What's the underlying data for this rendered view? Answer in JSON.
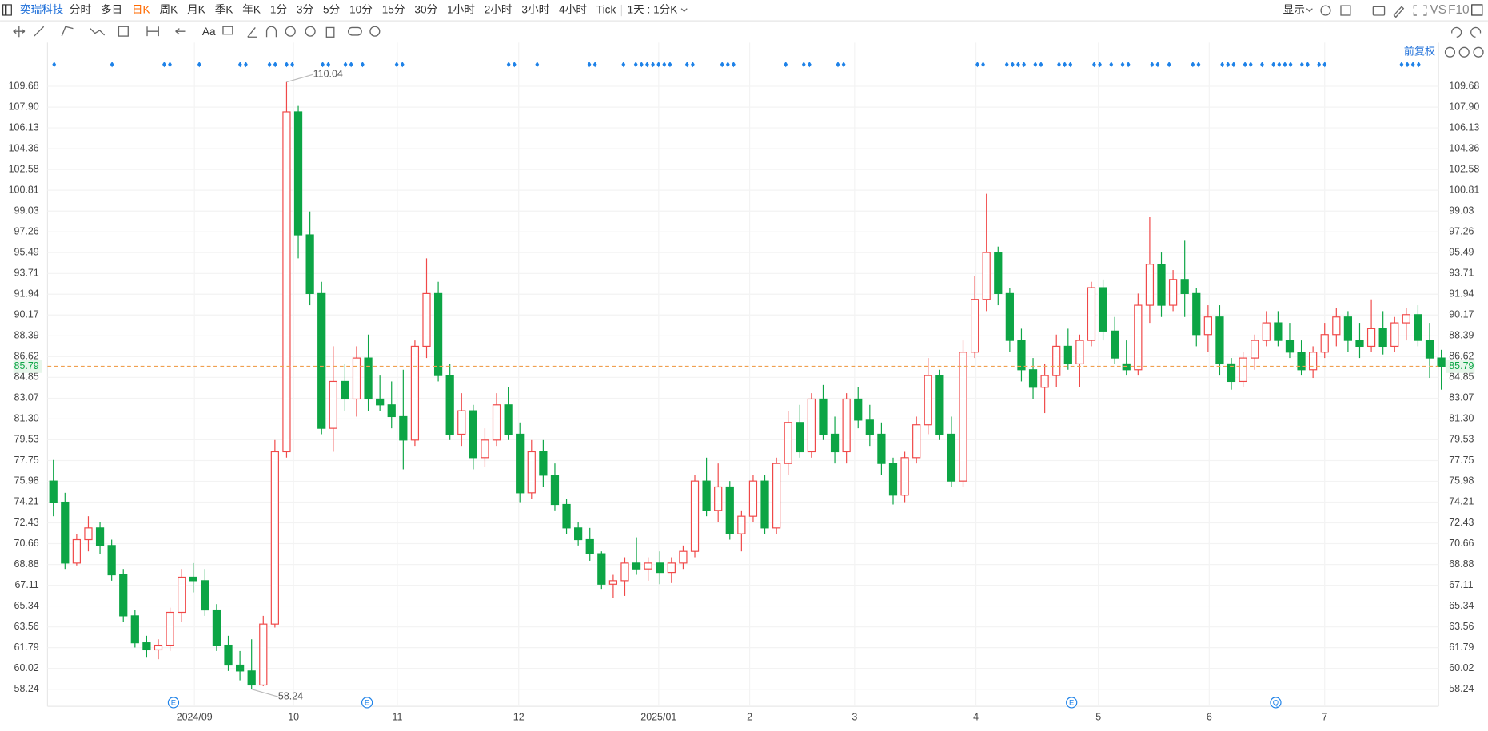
{
  "toolbar": {
    "stock": "奕瑞科技",
    "periods": [
      "分时",
      "多日",
      "日K",
      "周K",
      "月K",
      "季K",
      "年K",
      "1分",
      "3分",
      "5分",
      "10分",
      "15分",
      "30分",
      "1小时",
      "2小时",
      "3小时",
      "4小时",
      "Tick"
    ],
    "active_period": 2,
    "interval": "1天 : 1分K",
    "display": "显示",
    "vs": "VS",
    "f10": "F10",
    "adjust": "前复权"
  },
  "chart_data": {
    "type": "candlestick",
    "up_color": "#f04848",
    "down_color": "#0ca545",
    "last_color": "#f0a050",
    "xlim": [
      -0.5,
      119.5
    ],
    "xticks": [
      {
        "value": 12.1,
        "label": "2024/09"
      },
      {
        "value": 20.6,
        "label": "10"
      },
      {
        "value": 29.5,
        "label": "11"
      },
      {
        "value": 39.9,
        "label": "12"
      },
      {
        "value": 51.9,
        "label": "2025/01"
      },
      {
        "value": 59.7,
        "label": "2"
      },
      {
        "value": 68.7,
        "label": "3"
      },
      {
        "value": 79.1,
        "label": "4"
      },
      {
        "value": 89.6,
        "label": "5"
      },
      {
        "value": 99.1,
        "label": "6"
      },
      {
        "value": 109.0,
        "label": "7"
      }
    ],
    "ylim": [
      57.59,
      113.4
    ],
    "yticks": [
      58.24,
      60.02,
      61.79,
      63.56,
      65.34,
      67.11,
      68.88,
      70.66,
      72.43,
      74.21,
      75.98,
      77.75,
      79.53,
      {
        "value": 81.3,
        "label": "81.30"
      },
      83.07,
      84.85,
      86.62,
      88.39,
      90.17,
      91.94,
      93.71,
      95.49,
      97.26,
      99.03,
      100.81,
      102.58,
      104.36,
      106.13,
      {
        "value": 107.9,
        "label": "107.90"
      },
      109.68
    ],
    "grid": true,
    "last_price": 85.79,
    "annotations": [
      {
        "value": 110.04,
        "at": 20
      },
      {
        "value": 58.24,
        "at": 17
      }
    ],
    "event_markers": [
      {
        "label": "E",
        "at": 10.3
      },
      {
        "label": "E",
        "at": 26.9
      },
      {
        "label": "E",
        "at": 87.3
      },
      {
        "label": "Q",
        "at": 104.8
      }
    ],
    "ohlc": [
      [
        76,
        77.8,
        73,
        74.2
      ],
      [
        74.2,
        75,
        68.5,
        69
      ],
      [
        69,
        71.5,
        68.8,
        71
      ],
      [
        71,
        73,
        70,
        72
      ],
      [
        72,
        72.5,
        69.8,
        70.5
      ],
      [
        70.5,
        71,
        67.5,
        68
      ],
      [
        68,
        68.5,
        64,
        64.5
      ],
      [
        64.5,
        65,
        61.8,
        62.2
      ],
      [
        62.2,
        62.8,
        61,
        61.6
      ],
      [
        61.6,
        62.5,
        60.8,
        62
      ],
      [
        62,
        65.2,
        61.5,
        64.8
      ],
      [
        64.8,
        68.5,
        64,
        67.8
      ],
      [
        67.8,
        69,
        66.5,
        67.5
      ],
      [
        67.5,
        68.5,
        64.5,
        65
      ],
      [
        65,
        65.5,
        61.5,
        62
      ],
      [
        62,
        62.8,
        59.8,
        60.3
      ],
      [
        60.3,
        61.5,
        59,
        59.8
      ],
      [
        59.8,
        62.5,
        58.24,
        58.6
      ],
      [
        58.6,
        64.5,
        58.5,
        63.8
      ],
      [
        63.8,
        79.5,
        63.5,
        78.5
      ],
      [
        78.5,
        110.04,
        78,
        107.5
      ],
      [
        107.5,
        108,
        95,
        97
      ],
      [
        97,
        99,
        91,
        92
      ],
      [
        92,
        93,
        80,
        80.5
      ],
      [
        80.5,
        87.5,
        78.5,
        84.5
      ],
      [
        84.5,
        86,
        82,
        83
      ],
      [
        83,
        87.5,
        81.5,
        86.5
      ],
      [
        86.5,
        88.5,
        82,
        83
      ],
      [
        83,
        85,
        82,
        82.5
      ],
      [
        82.5,
        84.5,
        80.5,
        81.5
      ],
      [
        81.5,
        85.5,
        77,
        79.5
      ],
      [
        79.5,
        88,
        79,
        87.5
      ],
      [
        87.5,
        95,
        86.5,
        92
      ],
      [
        92,
        93,
        84.5,
        85
      ],
      [
        85,
        86,
        79.5,
        80
      ],
      [
        80,
        83.5,
        79,
        82
      ],
      [
        82,
        82.5,
        77,
        78
      ],
      [
        78,
        80.5,
        77.2,
        79.5
      ],
      [
        79.5,
        83.5,
        79,
        82.5
      ],
      [
        82.5,
        84,
        79.5,
        80
      ],
      [
        80,
        81,
        74.2,
        75
      ],
      [
        75,
        79.5,
        74.5,
        78.5
      ],
      [
        78.5,
        79.5,
        75.5,
        76.5
      ],
      [
        76.5,
        77.5,
        73.5,
        74
      ],
      [
        74,
        74.5,
        71.5,
        72
      ],
      [
        72,
        72.5,
        70.5,
        71
      ],
      [
        71,
        72,
        69.2,
        69.8
      ],
      [
        69.8,
        70,
        66.8,
        67.2
      ],
      [
        67.2,
        68,
        66,
        67.5
      ],
      [
        67.5,
        69.5,
        66.2,
        69
      ],
      [
        69,
        71.2,
        68,
        68.5
      ],
      [
        68.5,
        69.5,
        67.5,
        69
      ],
      [
        69,
        70,
        67.2,
        68.2
      ],
      [
        68.2,
        69.5,
        67.3,
        69
      ],
      [
        69,
        70.5,
        68.5,
        70
      ],
      [
        70,
        76.5,
        69.5,
        76
      ],
      [
        76,
        78,
        73,
        73.5
      ],
      [
        73.5,
        77.5,
        72.5,
        75.5
      ],
      [
        75.5,
        76,
        71,
        71.5
      ],
      [
        71.5,
        73.5,
        70,
        73
      ],
      [
        73,
        76.5,
        72.5,
        76
      ],
      [
        76,
        76.5,
        71.5,
        72
      ],
      [
        72,
        78,
        71.5,
        77.5
      ],
      [
        77.5,
        82,
        76.5,
        81
      ],
      [
        81,
        82.5,
        78,
        78.5
      ],
      [
        78.5,
        83.5,
        78,
        83
      ],
      [
        83,
        84.2,
        79.5,
        80
      ],
      [
        80,
        81.5,
        77.5,
        78.5
      ],
      [
        78.5,
        83.5,
        77.5,
        83
      ],
      [
        83,
        84,
        80.5,
        81.2
      ],
      [
        81.2,
        82.5,
        79,
        80
      ],
      [
        80,
        81,
        76.5,
        77.5
      ],
      [
        77.5,
        78,
        74,
        74.8
      ],
      [
        74.8,
        78.5,
        74.2,
        78
      ],
      [
        78,
        81.5,
        77.5,
        80.8
      ],
      [
        80.8,
        86.5,
        80,
        85
      ],
      [
        85,
        85.5,
        79.5,
        80
      ],
      [
        80,
        81.5,
        75.5,
        76
      ],
      [
        76,
        88,
        75.5,
        87
      ],
      [
        87,
        93.5,
        86.5,
        91.5
      ],
      [
        91.5,
        100.5,
        90.5,
        95.5
      ],
      [
        95.5,
        96,
        91,
        92
      ],
      [
        92,
        92.5,
        87,
        88
      ],
      [
        88,
        89,
        84.5,
        85.5
      ],
      [
        85.5,
        86.5,
        83,
        84
      ],
      [
        84,
        86,
        81.8,
        85
      ],
      [
        85,
        88.5,
        84,
        87.5
      ],
      [
        87.5,
        89,
        85.5,
        86
      ],
      [
        86,
        88.5,
        84,
        88
      ],
      [
        88,
        93,
        87.5,
        92.5
      ],
      [
        92.5,
        93.2,
        88,
        88.8
      ],
      [
        88.8,
        90,
        86,
        86.5
      ],
      [
        86,
        88,
        85,
        85.5
      ],
      [
        85.5,
        92,
        85,
        91
      ],
      [
        91,
        98.5,
        89.5,
        94.5
      ],
      [
        94.5,
        95.5,
        90,
        91
      ],
      [
        91,
        94,
        90.5,
        93.2
      ],
      [
        93.2,
        96.5,
        90,
        92
      ],
      [
        92,
        92.5,
        87.5,
        88.5
      ],
      [
        88.5,
        91,
        87,
        90
      ],
      [
        90,
        91,
        85,
        86
      ],
      [
        86,
        86.5,
        83.8,
        84.5
      ],
      [
        84.5,
        87,
        84,
        86.5
      ],
      [
        86.5,
        88.5,
        85.5,
        88
      ],
      [
        88,
        90.5,
        87.5,
        89.5
      ],
      [
        89.5,
        90.5,
        87.5,
        88
      ],
      [
        88,
        89.5,
        86.5,
        87
      ],
      [
        87,
        88,
        85,
        85.5
      ],
      [
        85.5,
        87.5,
        84.8,
        87
      ],
      [
        87,
        89.5,
        86.5,
        88.5
      ],
      [
        88.5,
        90.8,
        87.5,
        90
      ],
      [
        90,
        90.5,
        87,
        88
      ],
      [
        88,
        89.5,
        86.5,
        87.5
      ],
      [
        87.5,
        91.5,
        87,
        89
      ],
      [
        89,
        90.5,
        86.8,
        87.5
      ],
      [
        87.5,
        90,
        87,
        89.5
      ],
      [
        89.5,
        90.8,
        88,
        90.2
      ],
      [
        90.2,
        91,
        87.5,
        88
      ],
      [
        88,
        89.5,
        84.8,
        86.5
      ],
      [
        86.5,
        87.2,
        83.8,
        85.79
      ]
    ]
  }
}
